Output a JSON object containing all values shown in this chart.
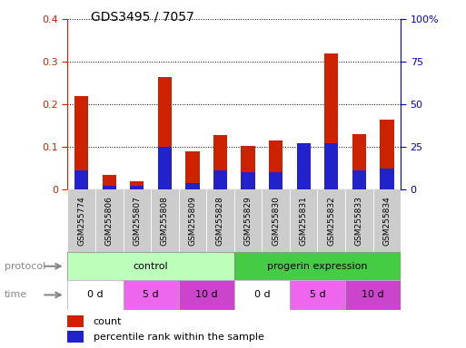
{
  "title": "GDS3495 / 7057",
  "samples": [
    "GSM255774",
    "GSM255806",
    "GSM255807",
    "GSM255808",
    "GSM255809",
    "GSM255828",
    "GSM255829",
    "GSM255830",
    "GSM255831",
    "GSM255832",
    "GSM255833",
    "GSM255834"
  ],
  "count_values": [
    0.22,
    0.035,
    0.02,
    0.265,
    0.09,
    0.128,
    0.102,
    0.115,
    0.005,
    0.32,
    0.13,
    0.165
  ],
  "pct_values": [
    11.25,
    2.5,
    2.5,
    25.0,
    3.75,
    11.25,
    10.0,
    10.0,
    27.5,
    27.5,
    11.25,
    12.5
  ],
  "ylim_left": [
    0,
    0.4
  ],
  "ylim_right": [
    0,
    100
  ],
  "yticks_left": [
    0,
    0.1,
    0.2,
    0.3,
    0.4
  ],
  "ytick_labels_left": [
    "0",
    "0.1",
    "0.2",
    "0.3",
    "0.4"
  ],
  "yticks_right": [
    0,
    25,
    50,
    75,
    100
  ],
  "ytick_labels_right": [
    "0",
    "25",
    "50",
    "75",
    "100%"
  ],
  "bar_color_count": "#cc2200",
  "bar_color_pct": "#2222cc",
  "bar_width": 0.5,
  "protocol_groups": [
    {
      "label": "control",
      "start": 0,
      "end": 6,
      "color": "#bbffbb"
    },
    {
      "label": "progerin expression",
      "start": 6,
      "end": 12,
      "color": "#44cc44"
    }
  ],
  "time_groups": [
    {
      "label": "0 d",
      "start": 0,
      "end": 2,
      "color": "#ffffff"
    },
    {
      "label": "5 d",
      "start": 2,
      "end": 4,
      "color": "#ee66ee"
    },
    {
      "label": "10 d",
      "start": 4,
      "end": 6,
      "color": "#cc44cc"
    },
    {
      "label": "0 d",
      "start": 6,
      "end": 8,
      "color": "#ffffff"
    },
    {
      "label": "5 d",
      "start": 8,
      "end": 10,
      "color": "#ee66ee"
    },
    {
      "label": "10 d",
      "start": 10,
      "end": 12,
      "color": "#cc44cc"
    }
  ],
  "legend_count_label": "count",
  "legend_pct_label": "percentile rank within the sample",
  "protocol_label": "protocol",
  "time_label": "time",
  "bg_color": "#ffffff",
  "tick_label_color_left": "#cc2200",
  "tick_label_color_right": "#0000cc",
  "label_color": "#888888",
  "sample_box_color": "#cccccc"
}
